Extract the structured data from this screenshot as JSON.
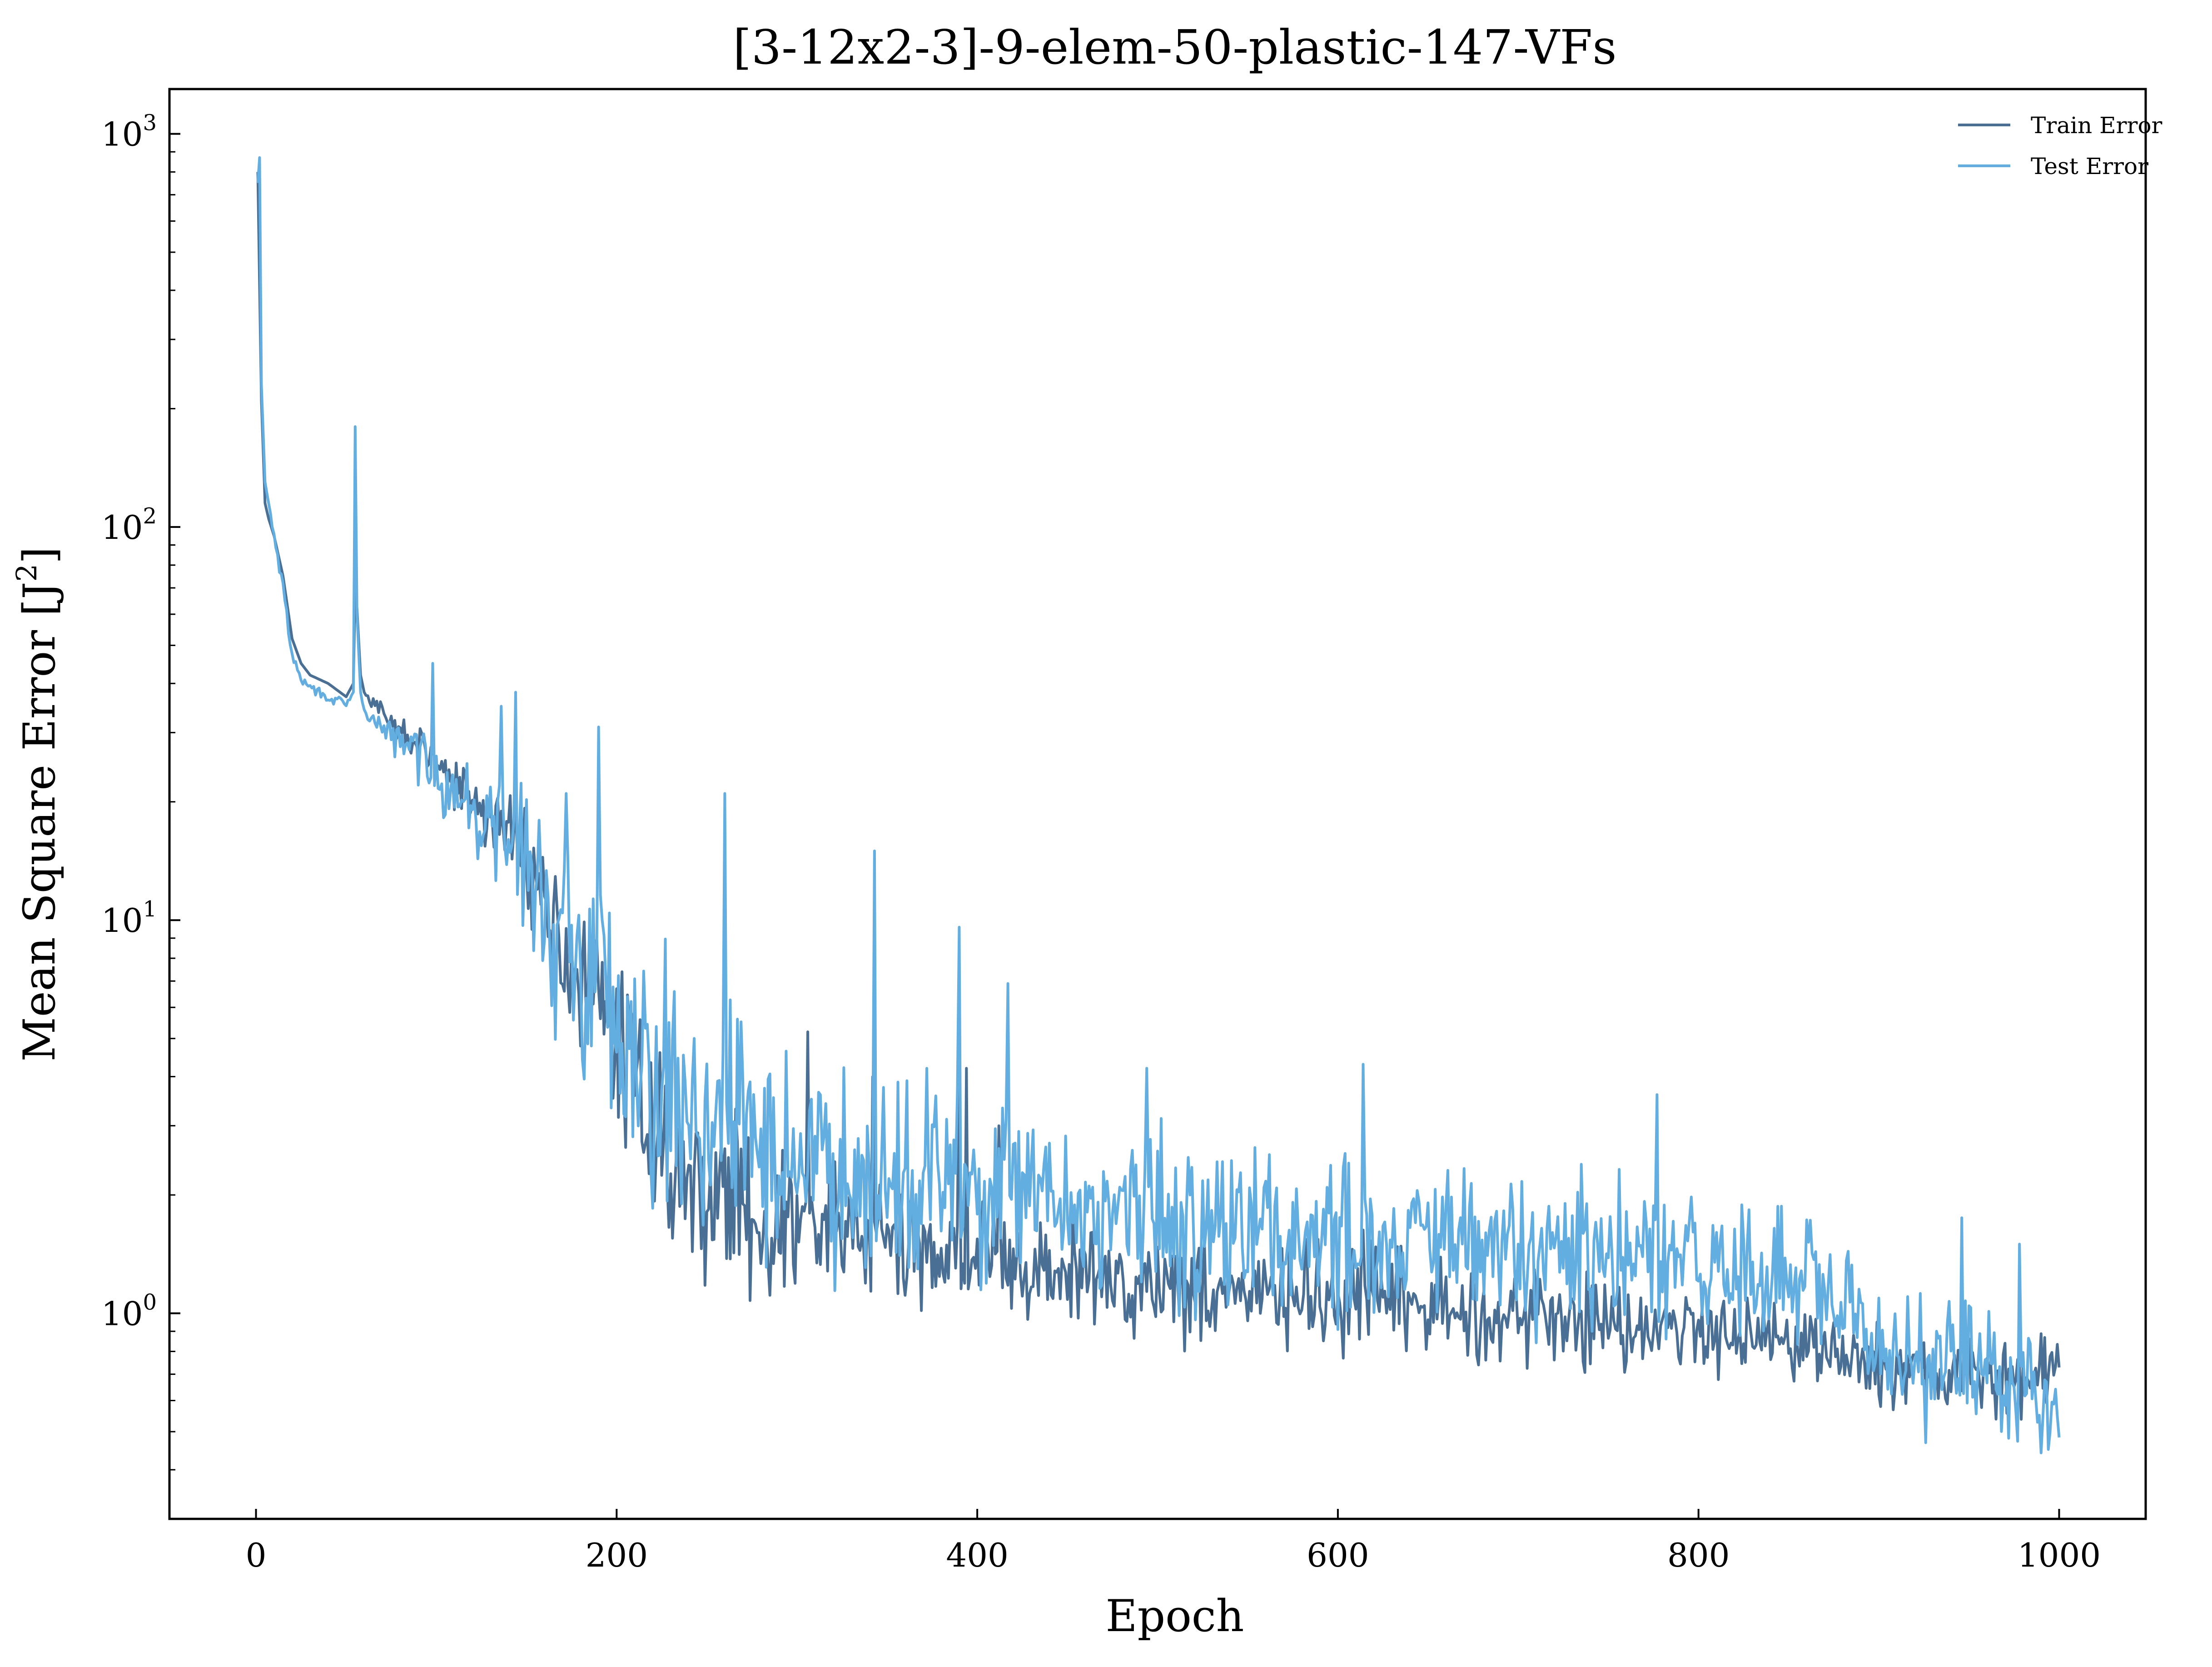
{
  "chart_data": {
    "type": "line",
    "title": "[3-12x2-3]-9-elem-50-plastic-147-VFs",
    "xlabel": "Epoch",
    "ylabel": "Mean Square Error [J",
    "ylabel_sup": "2",
    "ylabel_end": "]",
    "xscale": "linear",
    "yscale": "log",
    "xlim": [
      -48,
      1048
    ],
    "ylim": [
      0.3,
      1300
    ],
    "xticks": [
      0,
      200,
      400,
      600,
      800,
      1000
    ],
    "xtick_labels": [
      "0",
      "200",
      "400",
      "600",
      "800",
      "1000"
    ],
    "yticks": [
      1,
      10,
      100,
      1000
    ],
    "ytick_labels": [
      {
        "base": "10",
        "exp": "0"
      },
      {
        "base": "10",
        "exp": "1"
      },
      {
        "base": "10",
        "exp": "2"
      },
      {
        "base": "10",
        "exp": "3"
      }
    ],
    "grid": false,
    "legend_position": "top-right",
    "series": [
      {
        "name": "Train Error",
        "color": "#4a6f95",
        "x": [
          1,
          3,
          5,
          7,
          10,
          15,
          20,
          25,
          30,
          40,
          50,
          54,
          56,
          58,
          60,
          70,
          80,
          90,
          100,
          110,
          120,
          130,
          140,
          150,
          160,
          170,
          180,
          190,
          200,
          210,
          220,
          230,
          240,
          250,
          260,
          270,
          280,
          290,
          300,
          320,
          340,
          360,
          380,
          400,
          420,
          440,
          460,
          480,
          500,
          520,
          540,
          560,
          580,
          600,
          620,
          640,
          660,
          680,
          700,
          720,
          740,
          760,
          780,
          800,
          820,
          840,
          860,
          880,
          900,
          920,
          940,
          960,
          980,
          990,
          1000
        ],
        "y": [
          800,
          210,
          115,
          105,
          95,
          75,
          52,
          45,
          42,
          40,
          37,
          40,
          62,
          42,
          38,
          33,
          30,
          28,
          25,
          22,
          20,
          18,
          17,
          15,
          11,
          8.5,
          7,
          6,
          5,
          4,
          3.2,
          2.3,
          2.1,
          2.0,
          2.1,
          1.9,
          1.7,
          1.6,
          1.7,
          1.6,
          1.6,
          1.4,
          1.5,
          1.4,
          1.3,
          1.25,
          1.25,
          1.2,
          1.2,
          1.15,
          1.15,
          1.1,
          1.1,
          1.05,
          1.1,
          1.05,
          1.0,
          1.0,
          1.0,
          0.98,
          0.96,
          0.95,
          0.92,
          0.9,
          0.92,
          0.88,
          0.85,
          0.78,
          0.72,
          0.72,
          0.7,
          0.68,
          0.66,
          0.7,
          0.78
        ],
        "noise_amplitude": [
          0,
          0,
          0,
          0,
          0,
          0,
          0,
          0,
          0,
          0,
          0,
          0,
          0,
          0,
          0,
          0.05,
          0.06,
          0.08,
          0.1,
          0.1,
          0.12,
          0.14,
          0.15,
          0.18,
          0.22,
          0.25,
          0.28,
          0.3,
          0.3,
          0.3,
          0.3,
          0.3,
          0.3,
          0.3,
          0.3,
          0.3,
          0.3,
          0.28,
          0.28,
          0.26,
          0.26,
          0.24,
          0.24,
          0.22,
          0.22,
          0.2,
          0.2,
          0.2,
          0.2,
          0.2,
          0.2,
          0.2,
          0.2,
          0.2,
          0.2,
          0.18,
          0.18,
          0.18,
          0.18,
          0.17,
          0.17,
          0.16,
          0.16,
          0.16,
          0.15,
          0.15,
          0.14,
          0.14,
          0.14,
          0.14,
          0.14,
          0.14,
          0.14,
          0.14,
          0.14
        ],
        "seed": 17,
        "spikes": [
          [
            55,
            70
          ],
          [
            306,
            5.2
          ],
          [
            342,
            4.0
          ],
          [
            390,
            5.8
          ],
          [
            394,
            4.2
          ],
          [
            412,
            3.0
          ]
        ]
      },
      {
        "name": "Test Error",
        "color": "#62aee0",
        "x": [
          1,
          3,
          5,
          7,
          10,
          15,
          20,
          25,
          30,
          40,
          50,
          54,
          56,
          58,
          60,
          70,
          80,
          90,
          100,
          110,
          120,
          130,
          140,
          150,
          160,
          170,
          180,
          190,
          200,
          210,
          220,
          230,
          240,
          250,
          260,
          270,
          280,
          290,
          300,
          320,
          340,
          360,
          380,
          400,
          420,
          440,
          460,
          480,
          500,
          520,
          540,
          560,
          580,
          600,
          620,
          640,
          660,
          680,
          700,
          720,
          740,
          760,
          780,
          800,
          820,
          840,
          860,
          880,
          900,
          920,
          940,
          960,
          980,
          990,
          1000
        ],
        "y": [
          750,
          230,
          130,
          115,
          95,
          70,
          47,
          41,
          39,
          37,
          35,
          38,
          60,
          38,
          34,
          31,
          28,
          27,
          24,
          21,
          19,
          17,
          16,
          14,
          10.5,
          8.5,
          7.5,
          7,
          6,
          5,
          4.3,
          3.7,
          3.4,
          3.2,
          3.1,
          3.0,
          2.8,
          2.5,
          2.5,
          2.4,
          2.3,
          2.2,
          2.2,
          2.0,
          2.0,
          1.9,
          1.85,
          1.8,
          1.75,
          1.7,
          1.65,
          1.6,
          1.6,
          1.55,
          1.55,
          1.5,
          1.5,
          1.45,
          1.45,
          1.4,
          1.4,
          1.35,
          1.35,
          1.3,
          1.3,
          1.25,
          1.2,
          1.0,
          0.8,
          0.8,
          0.75,
          0.7,
          0.65,
          0.62,
          0.6
        ],
        "noise_amplitude": [
          0,
          0,
          0,
          0,
          0.02,
          0.02,
          0.02,
          0.02,
          0.02,
          0.02,
          0.02,
          0,
          0,
          0,
          0.02,
          0.06,
          0.08,
          0.1,
          0.12,
          0.14,
          0.16,
          0.18,
          0.22,
          0.26,
          0.32,
          0.36,
          0.4,
          0.42,
          0.44,
          0.45,
          0.45,
          0.45,
          0.45,
          0.45,
          0.44,
          0.42,
          0.42,
          0.4,
          0.4,
          0.38,
          0.38,
          0.36,
          0.36,
          0.34,
          0.33,
          0.32,
          0.32,
          0.32,
          0.32,
          0.32,
          0.31,
          0.31,
          0.31,
          0.3,
          0.3,
          0.3,
          0.3,
          0.29,
          0.29,
          0.28,
          0.28,
          0.28,
          0.27,
          0.27,
          0.27,
          0.27,
          0.26,
          0.26,
          0.26,
          0.26,
          0.26,
          0.26,
          0.26,
          0.26,
          0.26
        ],
        "seed": 29,
        "spikes": [
          [
            2,
            870
          ],
          [
            55,
            180
          ],
          [
            98,
            45
          ],
          [
            136,
            35
          ],
          [
            144,
            38
          ],
          [
            172,
            21
          ],
          [
            190,
            31
          ],
          [
            260,
            21
          ],
          [
            343,
            15
          ],
          [
            390,
            9.6
          ],
          [
            417,
            6.9
          ],
          [
            494,
            4.2
          ],
          [
            614,
            4.3
          ],
          [
            777,
            3.6
          ],
          [
            946,
            1.75
          ],
          [
            978,
            1.5
          ]
        ]
      }
    ]
  }
}
